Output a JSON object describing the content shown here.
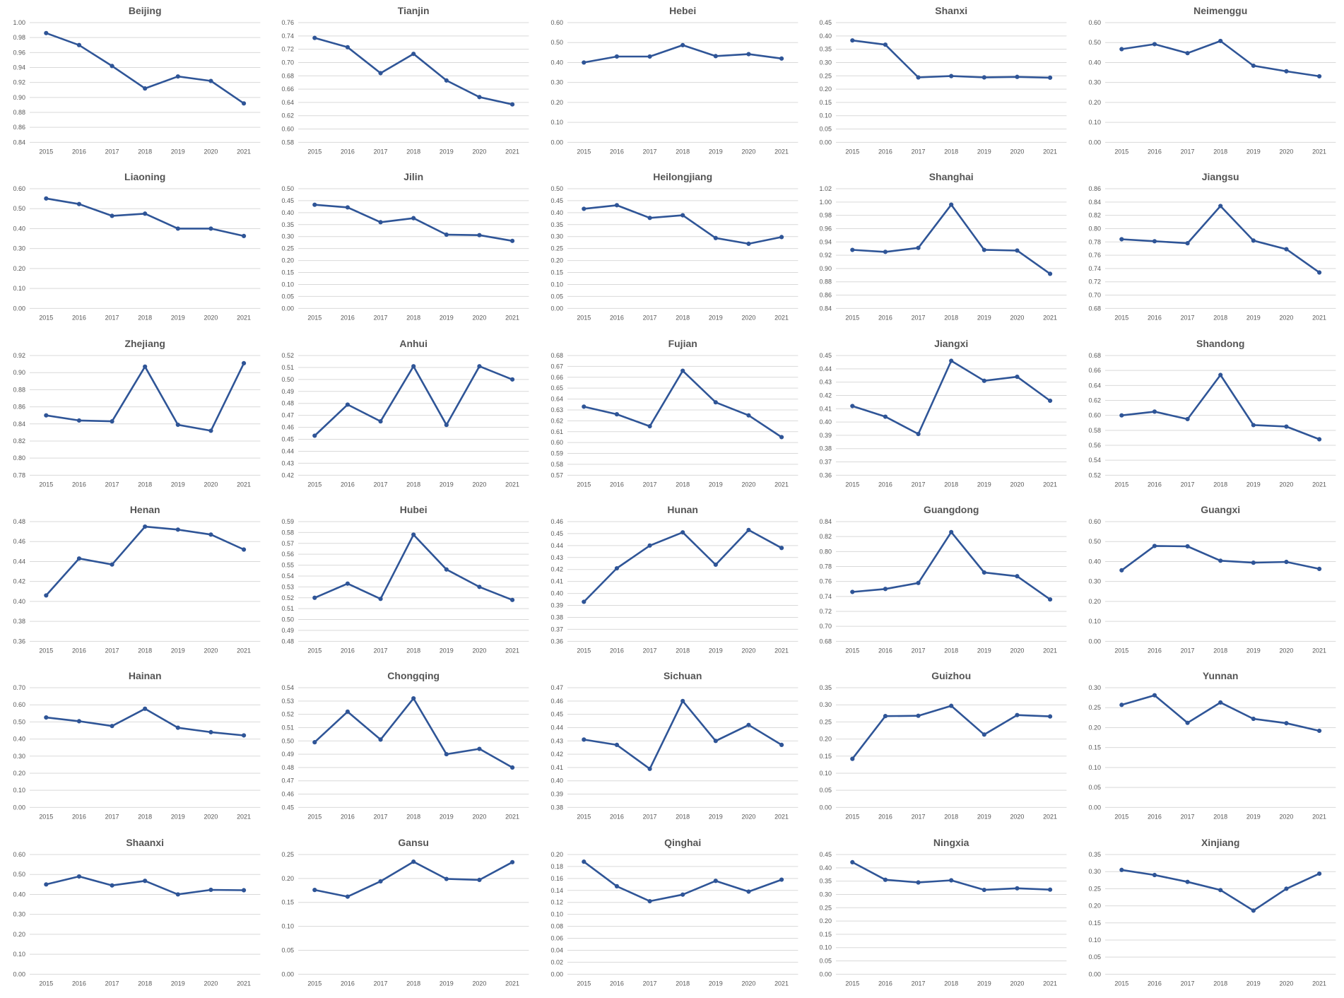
{
  "chart_data": [
    {
      "type": "line",
      "title": "Beijing",
      "categories": [
        "2015",
        "2016",
        "2017",
        "2018",
        "2019",
        "2020",
        "2021"
      ],
      "ylim": [
        0.84,
        1.0
      ],
      "yticks": [
        "0.84",
        "0.86",
        "0.88",
        "0.90",
        "0.92",
        "0.94",
        "0.96",
        "0.98",
        "1.00"
      ],
      "series": [
        {
          "values": [
            0.986,
            0.97,
            0.942,
            0.912,
            0.928,
            0.922,
            0.892
          ]
        }
      ]
    },
    {
      "type": "line",
      "title": "Tianjin",
      "categories": [
        "2015",
        "2016",
        "2017",
        "2018",
        "2019",
        "2020",
        "2021"
      ],
      "ylim": [
        0.58,
        0.76
      ],
      "yticks": [
        "0.58",
        "0.60",
        "0.62",
        "0.64",
        "0.66",
        "0.68",
        "0.70",
        "0.72",
        "0.74",
        "0.76"
      ],
      "series": [
        {
          "values": [
            0.737,
            0.723,
            0.684,
            0.713,
            0.673,
            0.648,
            0.637
          ]
        }
      ]
    },
    {
      "type": "line",
      "title": "Hebei",
      "categories": [
        "2015",
        "2016",
        "2017",
        "2018",
        "2019",
        "2020",
        "2021"
      ],
      "ylim": [
        0.0,
        0.6
      ],
      "yticks": [
        "0.00",
        "0.10",
        "0.20",
        "0.30",
        "0.40",
        "0.50",
        "0.60"
      ],
      "series": [
        {
          "values": [
            0.4,
            0.43,
            0.43,
            0.487,
            0.432,
            0.442,
            0.42
          ]
        }
      ]
    },
    {
      "type": "line",
      "title": "Shanxi",
      "categories": [
        "2015",
        "2016",
        "2017",
        "2018",
        "2019",
        "2020",
        "2021"
      ],
      "ylim": [
        0.0,
        0.45
      ],
      "yticks": [
        "0.00",
        "0.05",
        "0.10",
        "0.15",
        "0.20",
        "0.25",
        "0.30",
        "0.35",
        "0.40",
        "0.45"
      ],
      "series": [
        {
          "values": [
            0.383,
            0.367,
            0.244,
            0.249,
            0.244,
            0.246,
            0.243
          ]
        }
      ]
    },
    {
      "type": "line",
      "title": "Neimenggu",
      "categories": [
        "2015",
        "2016",
        "2017",
        "2018",
        "2019",
        "2020",
        "2021"
      ],
      "ylim": [
        0.0,
        0.6
      ],
      "yticks": [
        "0.00",
        "0.10",
        "0.20",
        "0.30",
        "0.40",
        "0.50",
        "0.60"
      ],
      "series": [
        {
          "values": [
            0.467,
            0.492,
            0.447,
            0.508,
            0.384,
            0.356,
            0.331
          ]
        }
      ]
    },
    {
      "type": "line",
      "title": "Liaoning",
      "categories": [
        "2015",
        "2016",
        "2017",
        "2018",
        "2019",
        "2020",
        "2021"
      ],
      "ylim": [
        0.0,
        0.6
      ],
      "yticks": [
        "0.00",
        "0.10",
        "0.20",
        "0.30",
        "0.40",
        "0.50",
        "0.60"
      ],
      "series": [
        {
          "values": [
            0.551,
            0.523,
            0.464,
            0.475,
            0.4,
            0.4,
            0.363
          ]
        }
      ]
    },
    {
      "type": "line",
      "title": "Jilin",
      "categories": [
        "2015",
        "2016",
        "2017",
        "2018",
        "2019",
        "2020",
        "2021"
      ],
      "ylim": [
        0.0,
        0.5
      ],
      "yticks": [
        "0.00",
        "0.05",
        "0.10",
        "0.15",
        "0.20",
        "0.25",
        "0.30",
        "0.35",
        "0.40",
        "0.45",
        "0.50"
      ],
      "series": [
        {
          "values": [
            0.433,
            0.422,
            0.36,
            0.377,
            0.308,
            0.306,
            0.282
          ]
        }
      ]
    },
    {
      "type": "line",
      "title": "Heilongjiang",
      "categories": [
        "2015",
        "2016",
        "2017",
        "2018",
        "2019",
        "2020",
        "2021"
      ],
      "ylim": [
        0.0,
        0.5
      ],
      "yticks": [
        "0.00",
        "0.05",
        "0.10",
        "0.15",
        "0.20",
        "0.25",
        "0.30",
        "0.35",
        "0.40",
        "0.45",
        "0.50"
      ],
      "series": [
        {
          "values": [
            0.416,
            0.431,
            0.378,
            0.389,
            0.294,
            0.27,
            0.298
          ]
        }
      ]
    },
    {
      "type": "line",
      "title": "Shanghai",
      "categories": [
        "2015",
        "2016",
        "2017",
        "2018",
        "2019",
        "2020",
        "2021"
      ],
      "ylim": [
        0.84,
        1.02
      ],
      "yticks": [
        "0.84",
        "0.86",
        "0.88",
        "0.90",
        "0.92",
        "0.94",
        "0.96",
        "0.98",
        "1.00",
        "1.02"
      ],
      "series": [
        {
          "values": [
            0.928,
            0.925,
            0.931,
            0.996,
            0.928,
            0.927,
            0.892
          ]
        }
      ]
    },
    {
      "type": "line",
      "title": "Jiangsu",
      "categories": [
        "2015",
        "2016",
        "2017",
        "2018",
        "2019",
        "2020",
        "2021"
      ],
      "ylim": [
        0.68,
        0.86
      ],
      "yticks": [
        "0.68",
        "0.70",
        "0.72",
        "0.74",
        "0.76",
        "0.78",
        "0.80",
        "0.82",
        "0.84",
        "0.86"
      ],
      "series": [
        {
          "values": [
            0.784,
            0.781,
            0.778,
            0.834,
            0.782,
            0.769,
            0.734
          ]
        }
      ]
    },
    {
      "type": "line",
      "title": "Zhejiang",
      "categories": [
        "2015",
        "2016",
        "2017",
        "2018",
        "2019",
        "2020",
        "2021"
      ],
      "ylim": [
        0.78,
        0.92
      ],
      "yticks": [
        "0.78",
        "0.80",
        "0.82",
        "0.84",
        "0.86",
        "0.88",
        "0.90",
        "0.92"
      ],
      "series": [
        {
          "values": [
            0.85,
            0.844,
            0.843,
            0.907,
            0.839,
            0.832,
            0.911
          ]
        }
      ]
    },
    {
      "type": "line",
      "title": "Anhui",
      "categories": [
        "2015",
        "2016",
        "2017",
        "2018",
        "2019",
        "2020",
        "2021"
      ],
      "ylim": [
        0.42,
        0.52
      ],
      "yticks": [
        "0.42",
        "0.43",
        "0.44",
        "0.45",
        "0.46",
        "0.47",
        "0.48",
        "0.49",
        "0.50",
        "0.51",
        "0.52"
      ],
      "series": [
        {
          "values": [
            0.453,
            0.479,
            0.465,
            0.511,
            0.462,
            0.511,
            0.5
          ]
        }
      ]
    },
    {
      "type": "line",
      "title": "Fujian",
      "categories": [
        "2015",
        "2016",
        "2017",
        "2018",
        "2019",
        "2020",
        "2021"
      ],
      "ylim": [
        0.57,
        0.68
      ],
      "yticks": [
        "0.57",
        "0.58",
        "0.59",
        "0.60",
        "0.61",
        "0.62",
        "0.63",
        "0.64",
        "0.65",
        "0.66",
        "0.67",
        "0.68"
      ],
      "series": [
        {
          "values": [
            0.633,
            0.626,
            0.615,
            0.666,
            0.637,
            0.625,
            0.605
          ]
        }
      ]
    },
    {
      "type": "line",
      "title": "Jiangxi",
      "categories": [
        "2015",
        "2016",
        "2017",
        "2018",
        "2019",
        "2020",
        "2021"
      ],
      "ylim": [
        0.36,
        0.45
      ],
      "yticks": [
        "0.36",
        "0.37",
        "0.38",
        "0.39",
        "0.40",
        "0.41",
        "0.42",
        "0.43",
        "0.44",
        "0.45"
      ],
      "series": [
        {
          "values": [
            0.412,
            0.404,
            0.391,
            0.446,
            0.431,
            0.434,
            0.416
          ]
        }
      ]
    },
    {
      "type": "line",
      "title": "Shandong",
      "categories": [
        "2015",
        "2016",
        "2017",
        "2018",
        "2019",
        "2020",
        "2021"
      ],
      "ylim": [
        0.52,
        0.68
      ],
      "yticks": [
        "0.52",
        "0.54",
        "0.56",
        "0.58",
        "0.60",
        "0.62",
        "0.64",
        "0.66",
        "0.68"
      ],
      "series": [
        {
          "values": [
            0.6,
            0.605,
            0.595,
            0.654,
            0.587,
            0.585,
            0.568
          ]
        }
      ]
    },
    {
      "type": "line",
      "title": "Henan",
      "categories": [
        "2015",
        "2016",
        "2017",
        "2018",
        "2019",
        "2020",
        "2021"
      ],
      "ylim": [
        0.36,
        0.48
      ],
      "yticks": [
        "0.36",
        "0.38",
        "0.40",
        "0.42",
        "0.44",
        "0.46",
        "0.48"
      ],
      "series": [
        {
          "values": [
            0.406,
            0.443,
            0.437,
            0.475,
            0.472,
            0.467,
            0.452
          ]
        }
      ]
    },
    {
      "type": "line",
      "title": "Hubei",
      "categories": [
        "2015",
        "2016",
        "2017",
        "2018",
        "2019",
        "2020",
        "2021"
      ],
      "ylim": [
        0.48,
        0.59
      ],
      "yticks": [
        "0.48",
        "0.49",
        "0.50",
        "0.51",
        "0.52",
        "0.53",
        "0.54",
        "0.55",
        "0.56",
        "0.57",
        "0.58",
        "0.59"
      ],
      "series": [
        {
          "values": [
            0.52,
            0.533,
            0.519,
            0.578,
            0.546,
            0.53,
            0.518
          ]
        }
      ]
    },
    {
      "type": "line",
      "title": "Hunan",
      "categories": [
        "2015",
        "2016",
        "2017",
        "2018",
        "2019",
        "2020",
        "2021"
      ],
      "ylim": [
        0.36,
        0.46
      ],
      "yticks": [
        "0.36",
        "0.37",
        "0.38",
        "0.39",
        "0.40",
        "0.41",
        "0.42",
        "0.43",
        "0.44",
        "0.45",
        "0.46"
      ],
      "series": [
        {
          "values": [
            0.393,
            0.421,
            0.44,
            0.451,
            0.424,
            0.453,
            0.438
          ]
        }
      ]
    },
    {
      "type": "line",
      "title": "Guangdong",
      "categories": [
        "2015",
        "2016",
        "2017",
        "2018",
        "2019",
        "2020",
        "2021"
      ],
      "ylim": [
        0.68,
        0.84
      ],
      "yticks": [
        "0.68",
        "0.70",
        "0.72",
        "0.74",
        "0.76",
        "0.78",
        "0.80",
        "0.82",
        "0.84"
      ],
      "series": [
        {
          "values": [
            0.746,
            0.75,
            0.758,
            0.826,
            0.772,
            0.767,
            0.736
          ]
        }
      ]
    },
    {
      "type": "line",
      "title": "Guangxi",
      "categories": [
        "2015",
        "2016",
        "2017",
        "2018",
        "2019",
        "2020",
        "2021"
      ],
      "ylim": [
        0.0,
        0.6
      ],
      "yticks": [
        "0.00",
        "0.10",
        "0.20",
        "0.30",
        "0.40",
        "0.50",
        "0.60"
      ],
      "series": [
        {
          "values": [
            0.356,
            0.478,
            0.476,
            0.404,
            0.394,
            0.398,
            0.363
          ]
        }
      ]
    },
    {
      "type": "line",
      "title": "Hainan",
      "categories": [
        "2015",
        "2016",
        "2017",
        "2018",
        "2019",
        "2020",
        "2021"
      ],
      "ylim": [
        0.0,
        0.7
      ],
      "yticks": [
        "0.00",
        "0.10",
        "0.20",
        "0.30",
        "0.40",
        "0.50",
        "0.60",
        "0.70"
      ],
      "series": [
        {
          "values": [
            0.526,
            0.504,
            0.476,
            0.577,
            0.466,
            0.44,
            0.421
          ]
        }
      ]
    },
    {
      "type": "line",
      "title": "Chongqing",
      "categories": [
        "2015",
        "2016",
        "2017",
        "2018",
        "2019",
        "2020",
        "2021"
      ],
      "ylim": [
        0.45,
        0.54
      ],
      "yticks": [
        "0.45",
        "0.46",
        "0.47",
        "0.48",
        "0.49",
        "0.50",
        "0.51",
        "0.52",
        "0.53",
        "0.54"
      ],
      "series": [
        {
          "values": [
            0.499,
            0.522,
            0.501,
            0.532,
            0.49,
            0.494,
            0.48
          ]
        }
      ]
    },
    {
      "type": "line",
      "title": "Sichuan",
      "categories": [
        "2015",
        "2016",
        "2017",
        "2018",
        "2019",
        "2020",
        "2021"
      ],
      "ylim": [
        0.38,
        0.47
      ],
      "yticks": [
        "0.38",
        "0.39",
        "0.40",
        "0.41",
        "0.42",
        "0.43",
        "0.44",
        "0.45",
        "0.46",
        "0.47"
      ],
      "series": [
        {
          "values": [
            0.431,
            0.427,
            0.409,
            0.46,
            0.43,
            0.442,
            0.427
          ]
        }
      ]
    },
    {
      "type": "line",
      "title": "Guizhou",
      "categories": [
        "2015",
        "2016",
        "2017",
        "2018",
        "2019",
        "2020",
        "2021"
      ],
      "ylim": [
        0.0,
        0.35
      ],
      "yticks": [
        "0.00",
        "0.05",
        "0.10",
        "0.15",
        "0.20",
        "0.25",
        "0.30",
        "0.35"
      ],
      "series": [
        {
          "values": [
            0.142,
            0.267,
            0.268,
            0.297,
            0.213,
            0.27,
            0.266
          ]
        }
      ]
    },
    {
      "type": "line",
      "title": "Yunnan",
      "categories": [
        "2015",
        "2016",
        "2017",
        "2018",
        "2019",
        "2020",
        "2021"
      ],
      "ylim": [
        0.0,
        0.3
      ],
      "yticks": [
        "0.00",
        "0.05",
        "0.10",
        "0.15",
        "0.20",
        "0.25",
        "0.30"
      ],
      "series": [
        {
          "values": [
            0.257,
            0.281,
            0.212,
            0.263,
            0.222,
            0.211,
            0.192
          ]
        }
      ]
    },
    {
      "type": "line",
      "title": "Shaanxi",
      "categories": [
        "2015",
        "2016",
        "2017",
        "2018",
        "2019",
        "2020",
        "2021"
      ],
      "ylim": [
        0.0,
        0.6
      ],
      "yticks": [
        "0.00",
        "0.10",
        "0.20",
        "0.30",
        "0.40",
        "0.50",
        "0.60"
      ],
      "series": [
        {
          "values": [
            0.45,
            0.49,
            0.445,
            0.468,
            0.4,
            0.423,
            0.421
          ]
        }
      ]
    },
    {
      "type": "line",
      "title": "Gansu",
      "categories": [
        "2015",
        "2016",
        "2017",
        "2018",
        "2019",
        "2020",
        "2021"
      ],
      "ylim": [
        0.0,
        0.25
      ],
      "yticks": [
        "0.00",
        "0.05",
        "0.10",
        "0.15",
        "0.20",
        "0.25"
      ],
      "series": [
        {
          "values": [
            0.176,
            0.162,
            0.194,
            0.235,
            0.199,
            0.197,
            0.234
          ]
        }
      ]
    },
    {
      "type": "line",
      "title": "Qinghai",
      "categories": [
        "2015",
        "2016",
        "2017",
        "2018",
        "2019",
        "2020",
        "2021"
      ],
      "ylim": [
        0.0,
        0.2
      ],
      "yticks": [
        "0.00",
        "0.02",
        "0.04",
        "0.06",
        "0.08",
        "0.10",
        "0.12",
        "0.14",
        "0.16",
        "0.18",
        "0.20"
      ],
      "series": [
        {
          "values": [
            0.188,
            0.147,
            0.122,
            0.133,
            0.156,
            0.138,
            0.158
          ]
        }
      ]
    },
    {
      "type": "line",
      "title": "Ningxia",
      "categories": [
        "2015",
        "2016",
        "2017",
        "2018",
        "2019",
        "2020",
        "2021"
      ],
      "ylim": [
        0.0,
        0.45
      ],
      "yticks": [
        "0.00",
        "0.05",
        "0.10",
        "0.15",
        "0.20",
        "0.25",
        "0.30",
        "0.35",
        "0.40",
        "0.45"
      ],
      "series": [
        {
          "values": [
            0.421,
            0.355,
            0.345,
            0.353,
            0.317,
            0.323,
            0.318
          ]
        }
      ]
    },
    {
      "type": "line",
      "title": "Xinjiang",
      "categories": [
        "2015",
        "2016",
        "2017",
        "2018",
        "2019",
        "2020",
        "2021"
      ],
      "ylim": [
        0.0,
        0.35
      ],
      "yticks": [
        "0.00",
        "0.05",
        "0.10",
        "0.15",
        "0.20",
        "0.25",
        "0.30",
        "0.35"
      ],
      "series": [
        {
          "values": [
            0.305,
            0.29,
            0.27,
            0.246,
            0.186,
            0.25,
            0.294
          ]
        }
      ]
    }
  ],
  "style": {
    "line_color": "#2f5597",
    "grid_color": "#d9d9d9",
    "text_color": "#595959",
    "title_color": "#555555",
    "background": "#ffffff"
  }
}
